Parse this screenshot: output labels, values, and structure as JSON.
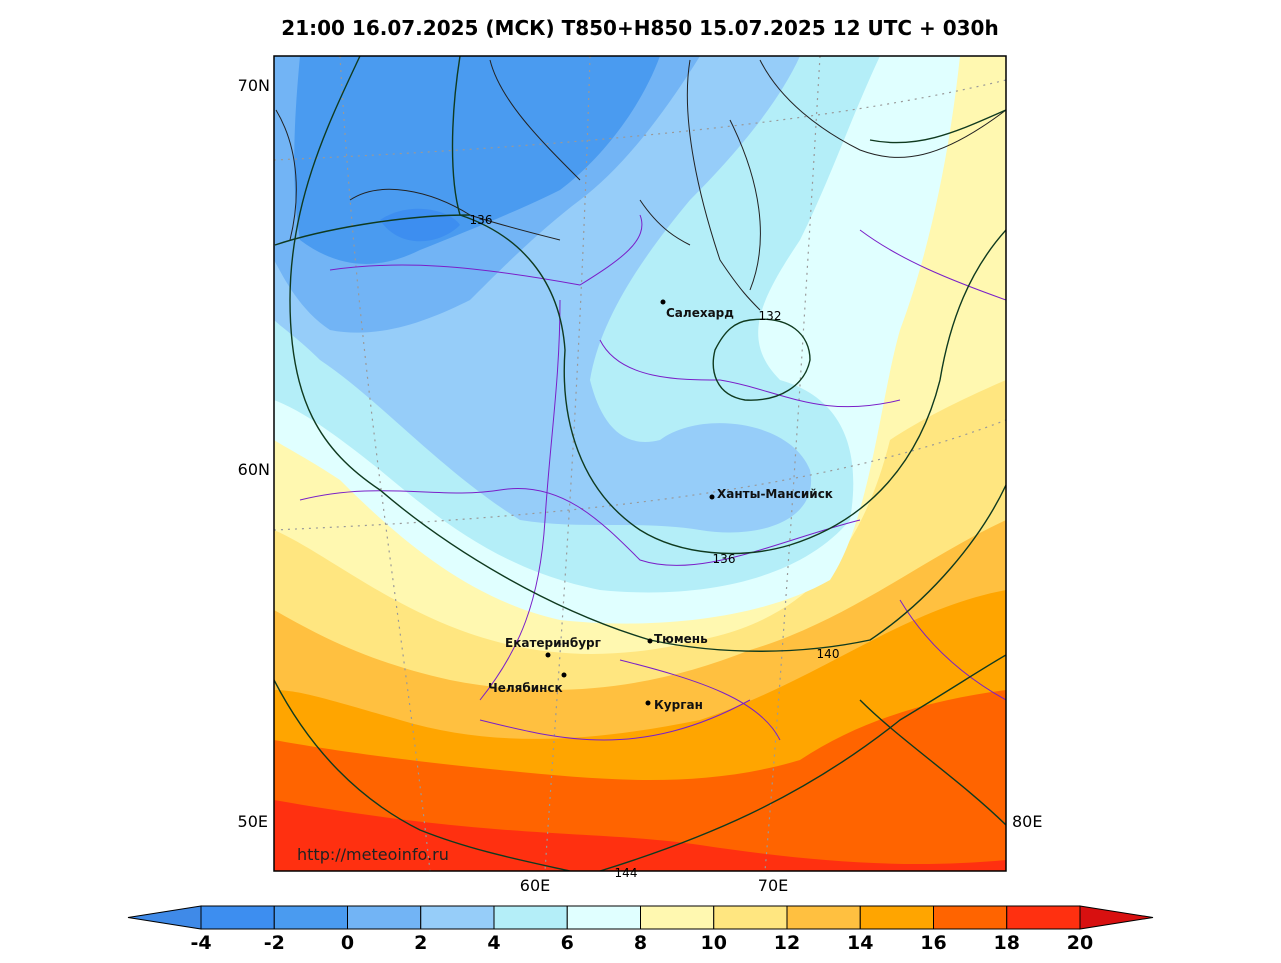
{
  "title": "21:00 16.07.2025 (МСК) T850+H850 15.07.2025 12 UTC + 030h",
  "axis_labels": {
    "left": [
      "70N",
      "60N",
      "50E"
    ],
    "right": [
      "80E"
    ],
    "bottom": [
      "60E",
      "70E"
    ]
  },
  "cities": [
    "Салехард",
    "Ханты-Мансийск",
    "Екатеринбург",
    "Тюмень",
    "Челябинск",
    "Курган"
  ],
  "contour_labels": [
    "136",
    "132",
    "136",
    "140",
    "144"
  ],
  "url": "http://meteoinfo.ru",
  "colorbar": {
    "ticks": [
      -4,
      -2,
      0,
      2,
      4,
      6,
      8,
      10,
      12,
      14,
      16,
      18,
      20
    ],
    "under_color": "#3f8ae8",
    "over_color": "#d81010",
    "colors": [
      "#3d8ef0",
      "#4a9bf0",
      "#72b4f5",
      "#96cdf9",
      "#b4eef8",
      "#e0ffff",
      "#fff8b0",
      "#ffe680",
      "#ffc040",
      "#ffa500",
      "#ff6400",
      "#ff3010"
    ]
  }
}
